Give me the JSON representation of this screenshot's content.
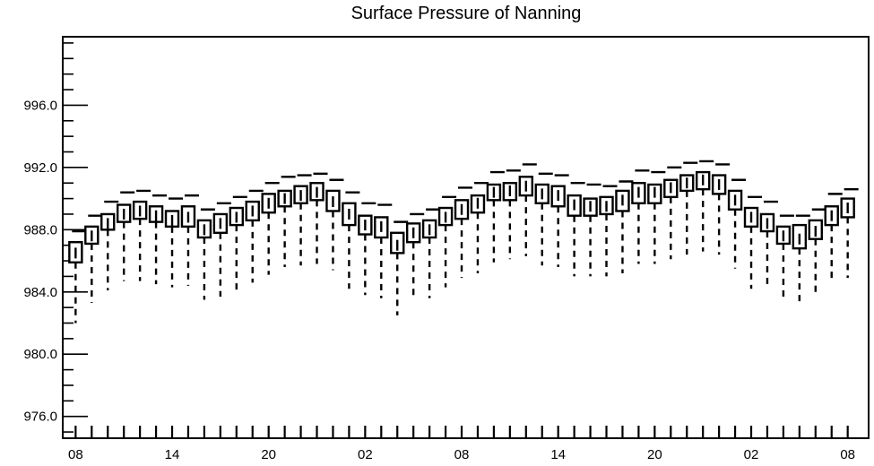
{
  "chart_data": {
    "type": "box",
    "title": "Surface Pressure of Nanning",
    "xlabel": "",
    "ylabel": "",
    "ylim": [
      974.6,
      1000.4
    ],
    "y_ticks": [
      "976.0",
      "980.0",
      "984.0",
      "988.0",
      "992.0",
      "996.0"
    ],
    "y_tick_values": [
      976,
      980,
      984,
      988,
      992,
      996
    ],
    "x_ticks": [
      "08",
      "14",
      "20",
      "02",
      "08",
      "14",
      "20",
      "02",
      "08"
    ],
    "x_tick_positions": [
      0,
      6,
      12,
      18,
      24,
      30,
      36,
      42,
      48
    ],
    "x_range": [
      -0.8,
      49.3
    ],
    "grid": false,
    "median": [
      986.5,
      987.6,
      988.4,
      989.0,
      989.2,
      988.9,
      988.6,
      988.8,
      988.0,
      988.4,
      988.8,
      989.2,
      989.7,
      990.0,
      990.2,
      990.4,
      989.8,
      989.0,
      988.3,
      988.2,
      987.0,
      987.8,
      988.0,
      988.8,
      989.3,
      989.7,
      990.4,
      990.5,
      990.8,
      990.3,
      990.2,
      989.6,
      989.5,
      989.5,
      989.9,
      990.4,
      990.4,
      990.7,
      991.0,
      991.2,
      990.9,
      989.9,
      988.8,
      988.4,
      987.6,
      987.4,
      987.9,
      988.9,
      989.4
    ],
    "box_low": [
      985.9,
      987.1,
      988.0,
      988.5,
      988.7,
      988.5,
      988.2,
      988.2,
      987.5,
      987.8,
      988.3,
      988.6,
      989.1,
      989.5,
      989.7,
      989.9,
      989.2,
      988.3,
      987.7,
      987.5,
      986.5,
      987.2,
      987.5,
      988.3,
      988.7,
      989.1,
      989.9,
      989.9,
      990.2,
      989.7,
      989.5,
      988.9,
      988.9,
      989.0,
      989.2,
      989.7,
      989.7,
      990.1,
      990.5,
      990.6,
      990.3,
      989.3,
      988.2,
      987.9,
      987.1,
      986.8,
      987.4,
      988.3,
      988.8
    ],
    "box_high": [
      987.2,
      988.2,
      989.0,
      989.6,
      989.8,
      989.5,
      989.2,
      989.5,
      988.6,
      989.0,
      989.4,
      989.8,
      990.3,
      990.5,
      990.8,
      991.0,
      990.5,
      989.7,
      988.9,
      988.8,
      987.8,
      988.4,
      988.6,
      989.4,
      989.9,
      990.2,
      990.9,
      991.0,
      991.4,
      990.9,
      990.8,
      990.2,
      990.0,
      990.1,
      990.5,
      991.0,
      990.9,
      991.2,
      991.5,
      991.7,
      991.5,
      990.5,
      989.4,
      989.0,
      988.2,
      988.3,
      988.6,
      989.5,
      990.0
    ],
    "whisker_low": [
      982.0,
      983.3,
      984.1,
      984.7,
      984.7,
      984.5,
      984.3,
      984.4,
      983.5,
      983.7,
      984.0,
      984.6,
      985.1,
      985.6,
      985.7,
      985.8,
      985.4,
      984.2,
      983.8,
      983.6,
      982.5,
      983.5,
      983.6,
      984.3,
      984.9,
      985.2,
      985.9,
      986.1,
      986.3,
      985.7,
      985.6,
      985.0,
      985.0,
      985.0,
      985.2,
      985.8,
      985.8,
      986.1,
      986.4,
      986.6,
      986.4,
      985.5,
      984.2,
      984.2,
      983.5,
      983.4,
      983.7,
      984.6,
      984.9
    ],
    "whisker_high": [
      987.9,
      988.9,
      989.8,
      990.4,
      990.5,
      990.2,
      990.0,
      990.2,
      989.3,
      989.7,
      990.1,
      990.5,
      991.0,
      991.4,
      991.5,
      991.6,
      991.2,
      990.4,
      989.7,
      989.6,
      988.5,
      989.0,
      989.3,
      990.1,
      990.7,
      991.0,
      991.7,
      991.8,
      992.2,
      991.6,
      991.5,
      991.0,
      990.9,
      990.8,
      991.1,
      991.8,
      991.7,
      992.0,
      992.3,
      992.4,
      992.2,
      991.2,
      990.1,
      989.8,
      988.9,
      988.9,
      989.3,
      990.3,
      990.6
    ]
  }
}
